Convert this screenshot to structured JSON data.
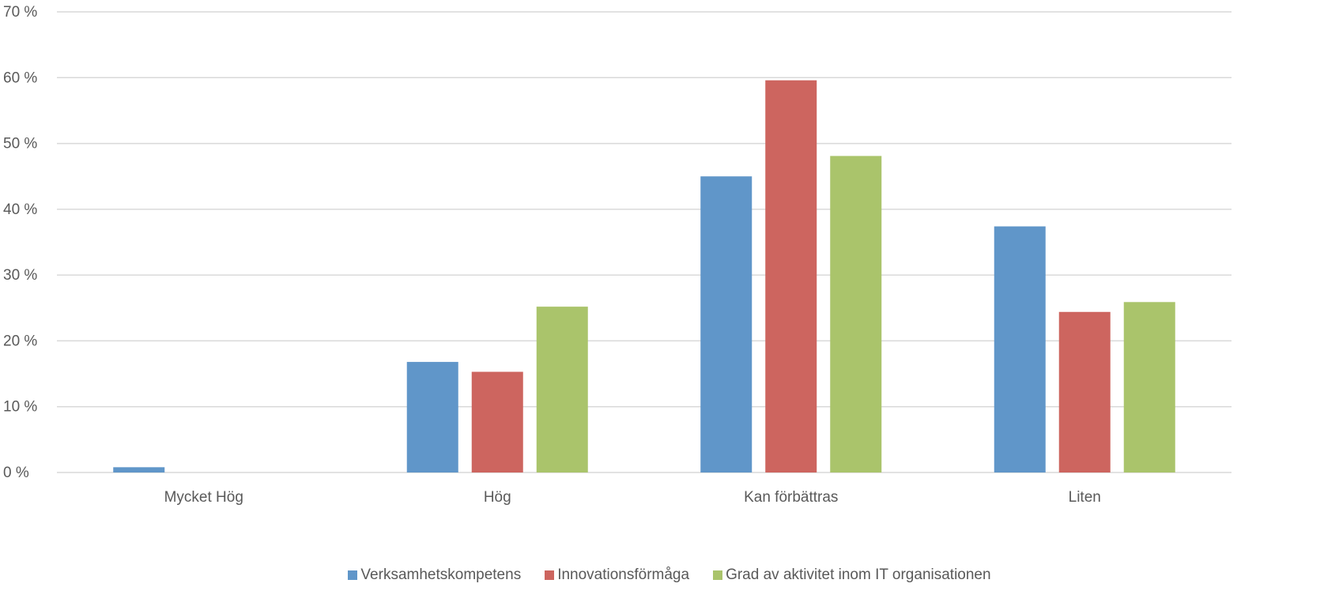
{
  "chart_data": {
    "type": "bar",
    "categories": [
      "Mycket Hög",
      "Hög",
      "Kan förbättras",
      "Liten"
    ],
    "series": [
      {
        "name": "Verksamhetskompetens",
        "color": "#6096c9",
        "values": [
          0.8,
          16.8,
          45.0,
          37.4
        ]
      },
      {
        "name": "Innovationsförmåga",
        "color": "#cd655f",
        "values": [
          0,
          15.3,
          59.6,
          24.4
        ]
      },
      {
        "name": "Grad av aktivitet inom IT organisationen",
        "color": "#aac46b",
        "values": [
          0,
          25.2,
          48.1,
          25.9
        ]
      }
    ],
    "ylim": [
      0,
      70
    ],
    "yticks": [
      0,
      10,
      20,
      30,
      40,
      50,
      60,
      70
    ],
    "ytick_labels": [
      "0 %",
      "10 %",
      "20 %",
      "30 %",
      "40 %",
      "50 %",
      "60 %",
      "70 %"
    ],
    "grid": true,
    "gridline_color": "#d9d9d9",
    "legend_position": "bottom"
  }
}
